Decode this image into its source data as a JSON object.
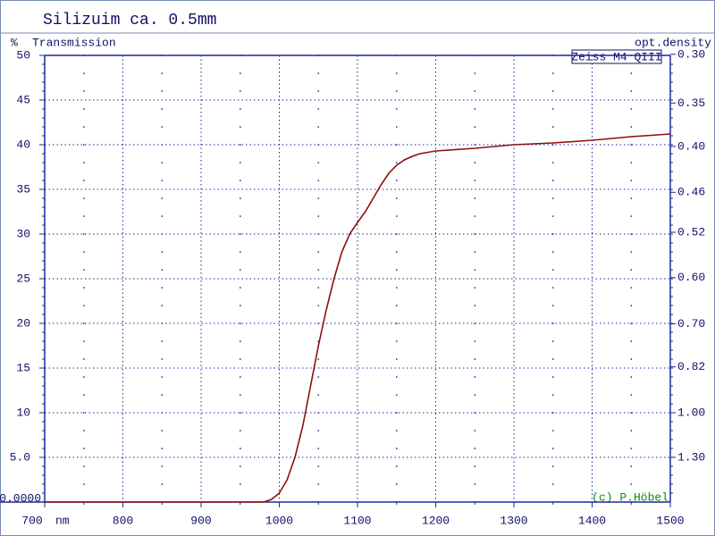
{
  "chart_data": {
    "type": "line",
    "title": "Silizuim ca. 0.5mm",
    "xlabel": "nm",
    "ylabel_unit": "%",
    "ylabel": "Transmission",
    "y2label": "opt.density",
    "legend_box": "Zeiss M4 QIII",
    "annotation": "(c) P.Höbel",
    "x": [
      700,
      950,
      980,
      990,
      1000,
      1010,
      1020,
      1030,
      1040,
      1050,
      1060,
      1070,
      1080,
      1090,
      1100,
      1110,
      1120,
      1130,
      1140,
      1150,
      1160,
      1170,
      1180,
      1200,
      1250,
      1300,
      1350,
      1400,
      1450,
      1500
    ],
    "series": [
      {
        "name": "Silizuim ca. 0.5mm",
        "color": "#8b1010",
        "values": [
          0,
          0,
          0,
          0.3,
          1,
          2.5,
          5,
          8.5,
          13,
          17.5,
          21.5,
          25,
          28,
          30,
          31.3,
          32.5,
          34,
          35.5,
          36.8,
          37.7,
          38.3,
          38.7,
          39,
          39.3,
          39.6,
          40,
          40.2,
          40.5,
          40.9,
          41.2
        ]
      }
    ],
    "xlim": [
      700,
      1500
    ],
    "xticks": [
      700,
      800,
      900,
      1000,
      1100,
      1200,
      1300,
      1400,
      1500
    ],
    "ylim": [
      0,
      50
    ],
    "yticks": [
      {
        "value": 0,
        "label": "0.0000"
      },
      {
        "value": 5,
        "label": "5.0"
      },
      10,
      15,
      20,
      25,
      30,
      35,
      40,
      45,
      50
    ],
    "y2ticks": [
      {
        "value": 0.3,
        "label": "0.30"
      },
      0.35,
      {
        "value": 0.4,
        "label": "0.40"
      },
      0.46,
      0.52,
      {
        "value": 0.6,
        "label": "0.60"
      },
      {
        "value": 0.7,
        "label": "0.70"
      },
      0.82,
      {
        "value": 1,
        "label": "1.00"
      },
      {
        "value": 1.3,
        "label": "1.30"
      }
    ],
    "grid": true
  }
}
